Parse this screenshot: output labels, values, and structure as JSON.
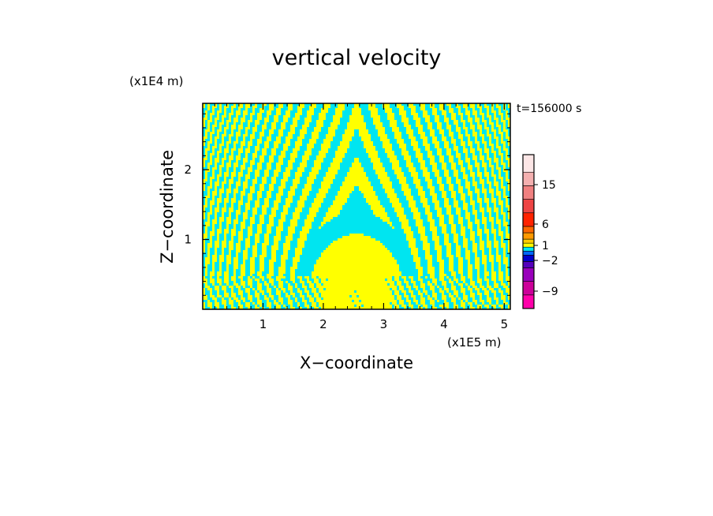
{
  "chart_data": {
    "type": "heatmap",
    "title": "vertical velocity",
    "xlabel": "X−coordinate",
    "ylabel": "Z−coordinate",
    "x_unit_label": "(x1E5 m)",
    "y_unit_label": "(x1E4 m)",
    "time_label": "t=156000 s",
    "xlim": [
      0,
      5.1
    ],
    "ylim": [
      0,
      2.95
    ],
    "x_ticks": [
      1,
      2,
      3,
      4,
      5
    ],
    "y_ticks": [
      1,
      2
    ],
    "field_colors": {
      "positive": "#ffff00",
      "negative": "#00e5f0"
    },
    "colorbar": {
      "tick_labels": [
        "15",
        "6",
        "1",
        "−2",
        "−9"
      ],
      "levels": [
        {
          "color": "#ff00aa"
        },
        {
          "color": "#cc0099"
        },
        {
          "color": "#9900bb"
        },
        {
          "color": "#5500bb"
        },
        {
          "color": "#0000cc"
        },
        {
          "color": "#0066ff"
        },
        {
          "color": "#00e5f0"
        },
        {
          "color": "#ffff00"
        },
        {
          "color": "#ffcc00"
        },
        {
          "color": "#ff9900"
        },
        {
          "color": "#ff6600"
        },
        {
          "color": "#ff2200"
        },
        {
          "color": "#ee4444"
        },
        {
          "color": "#f08080"
        },
        {
          "color": "#f4b0b0"
        },
        {
          "color": "#fce6e6"
        }
      ]
    }
  }
}
